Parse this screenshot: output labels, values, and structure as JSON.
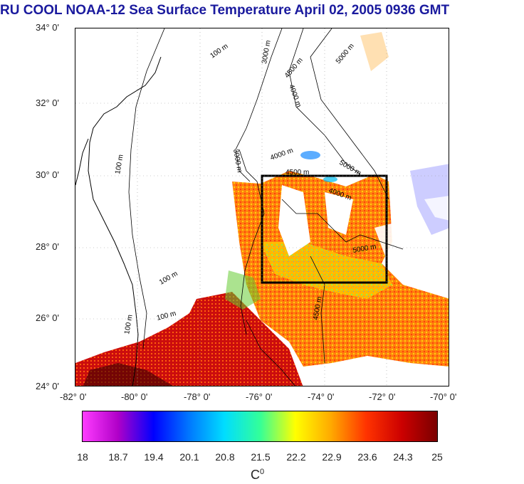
{
  "title": "RU COOL  NOAA-12 Sea Surface Temperature April 02, 2005 0936 GMT",
  "lat_ticks": [
    "34° 0'",
    "32° 0'",
    "30° 0'",
    "28° 0'",
    "26° 0'",
    "24° 0'"
  ],
  "lon_ticks": [
    "-82° 0'",
    "-80° 0'",
    "-78° 0'",
    "-76° 0'",
    "-74° 0'",
    "-72° 0'",
    "-70° 0'"
  ],
  "contour_labels": [
    "100 m",
    "100 m",
    "100 m",
    "100 m",
    "100 m",
    "3000 m",
    "3000 m",
    "4000 m",
    "4000 m",
    "4500 m",
    "4500 m",
    "4500 m",
    "5000 m",
    "5000 m",
    "5000 m",
    "4000 m"
  ],
  "colorbar": {
    "ticks": [
      "18",
      "18.7",
      "19.4",
      "20.1",
      "20.8",
      "21.5",
      "22.2",
      "22.9",
      "23.6",
      "24.3",
      "25"
    ],
    "unit": "C",
    "unit_sup": "0",
    "colors": [
      "#ff3cff",
      "#b000c8",
      "#0000ff",
      "#0077ff",
      "#00ddff",
      "#33ff99",
      "#ffff00",
      "#ffaa00",
      "#ff3300",
      "#cc0000",
      "#7a0000"
    ]
  }
}
